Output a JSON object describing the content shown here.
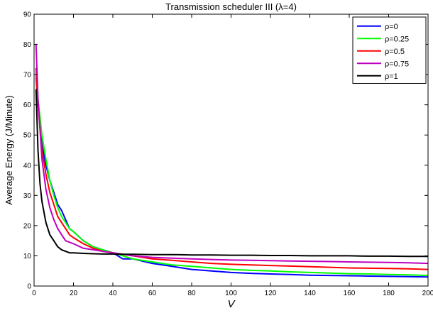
{
  "chart_data": {
    "type": "line",
    "title": "Transmission scheduler III (λ=4)",
    "xlabel": "V",
    "ylabel": "Average Energy (J/Minute)",
    "xlim": [
      0,
      200
    ],
    "ylim": [
      0,
      90
    ],
    "xticks": [
      0,
      20,
      40,
      60,
      80,
      100,
      120,
      140,
      160,
      180,
      200
    ],
    "yticks": [
      0,
      10,
      20,
      30,
      40,
      50,
      60,
      70,
      80,
      90
    ],
    "grid": false,
    "legend_position": "top-right",
    "series": [
      {
        "name": "ρ=0",
        "color": "#0000ff",
        "x": [
          1,
          2,
          4,
          6,
          8,
          10,
          12,
          14,
          16,
          18,
          20,
          25,
          30,
          35,
          40,
          45,
          50,
          60,
          70,
          80,
          90,
          100,
          110,
          120,
          130,
          140,
          150,
          160,
          170,
          180,
          190,
          200
        ],
        "y": [
          69,
          60,
          47,
          40,
          35,
          31,
          27,
          25,
          22,
          19,
          18,
          15,
          13,
          12,
          11,
          9,
          9,
          7.5,
          6.5,
          5.5,
          5,
          4.5,
          4.2,
          4,
          3.8,
          3.6,
          3.5,
          3.4,
          3.3,
          3.2,
          3.1,
          3
        ]
      },
      {
        "name": "ρ=0.25",
        "color": "#00ff00",
        "x": [
          1,
          2,
          4,
          6,
          8,
          10,
          12,
          14,
          16,
          18,
          20,
          25,
          30,
          35,
          40,
          45,
          50,
          60,
          70,
          80,
          90,
          100,
          110,
          120,
          130,
          140,
          150,
          160,
          170,
          180,
          190,
          200
        ],
        "y": [
          70,
          62,
          50,
          42,
          35,
          30,
          26,
          23,
          21,
          19,
          18,
          15,
          13,
          12,
          11,
          10,
          9,
          8,
          7,
          6.5,
          6,
          5.5,
          5.2,
          5,
          4.7,
          4.5,
          4.3,
          4.1,
          4,
          3.8,
          3.7,
          3.5
        ]
      },
      {
        "name": "ρ=0.5",
        "color": "#ff0000",
        "x": [
          1,
          2,
          4,
          6,
          8,
          10,
          12,
          14,
          16,
          18,
          20,
          25,
          30,
          35,
          40,
          45,
          50,
          60,
          70,
          80,
          90,
          100,
          110,
          120,
          130,
          140,
          150,
          160,
          170,
          180,
          190,
          200
        ],
        "y": [
          72,
          60,
          45,
          37,
          31,
          27,
          23,
          21,
          19,
          17,
          16,
          14,
          12.5,
          11.5,
          11,
          10.5,
          10,
          9,
          8.5,
          8,
          7.5,
          7.2,
          7,
          6.8,
          6.6,
          6.4,
          6.2,
          6,
          5.9,
          5.8,
          5.7,
          5.5
        ]
      },
      {
        "name": "ρ=0.75",
        "color": "#bf00bf",
        "x": [
          1,
          2,
          4,
          6,
          8,
          10,
          12,
          14,
          16,
          18,
          20,
          25,
          30,
          35,
          40,
          45,
          50,
          60,
          70,
          80,
          90,
          100,
          110,
          120,
          130,
          140,
          150,
          160,
          170,
          180,
          190,
          200
        ],
        "y": [
          80,
          62,
          42,
          32,
          26,
          22,
          19,
          17,
          15,
          14.5,
          14,
          12.5,
          12,
          11.5,
          11,
          10.5,
          10,
          9.5,
          9.2,
          9,
          8.8,
          8.6,
          8.5,
          8.4,
          8.3,
          8.2,
          8.1,
          8,
          7.9,
          7.8,
          7.7,
          7.5
        ]
      },
      {
        "name": "ρ=1",
        "color": "#000000",
        "x": [
          1,
          2,
          3,
          4,
          6,
          8,
          10,
          12,
          14,
          16,
          18,
          20,
          25,
          30,
          35,
          40,
          45,
          50,
          60,
          70,
          80,
          90,
          100,
          110,
          120,
          130,
          140,
          150,
          160,
          170,
          180,
          190,
          200
        ],
        "y": [
          65,
          45,
          34,
          28,
          21,
          17,
          15,
          13,
          12,
          11.5,
          11,
          11,
          10.8,
          10.7,
          10.6,
          10.6,
          10.5,
          10.5,
          10.4,
          10.4,
          10.3,
          10.3,
          10.2,
          10.2,
          10.1,
          10.1,
          10,
          10,
          10,
          9.9,
          9.9,
          9.8,
          9.8
        ]
      }
    ]
  }
}
